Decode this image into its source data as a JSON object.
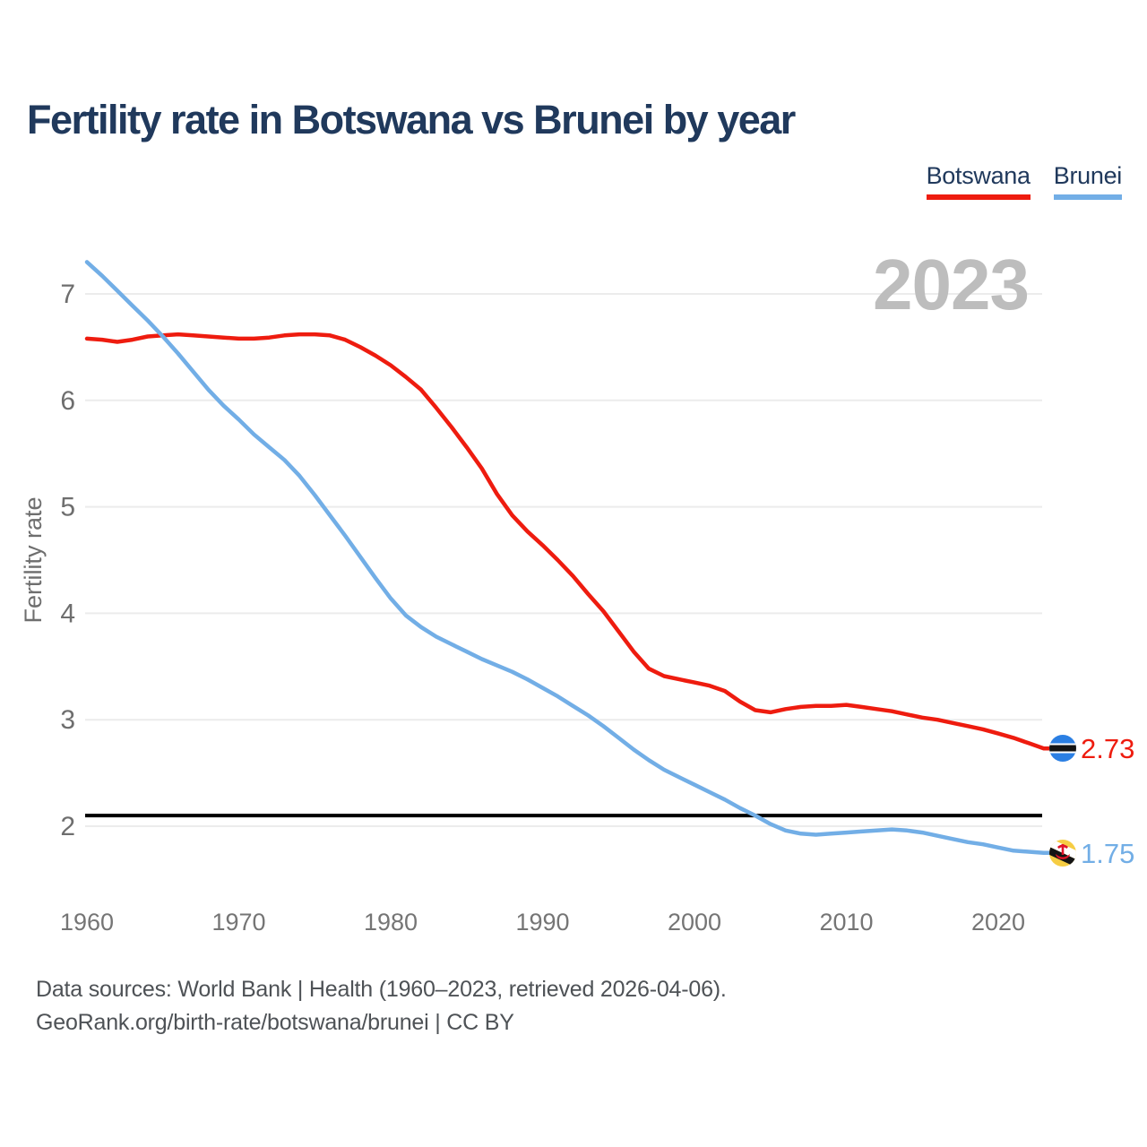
{
  "header": {
    "title": "Fertility rate in Botswana vs Brunei by year",
    "legend": [
      {
        "label": "Botswana",
        "color": "#ee1c0f"
      },
      {
        "label": "Brunei",
        "color": "#72aee6"
      }
    ]
  },
  "watermark": "2023",
  "chart_data": {
    "type": "line",
    "title": "Fertility rate in Botswana vs Brunei by year",
    "xlabel": "",
    "ylabel": "Fertility rate",
    "xlim": [
      1960,
      2023
    ],
    "ylim": [
      1.6,
      7.45
    ],
    "x_ticks": [
      1960,
      1970,
      1980,
      1990,
      2000,
      2010,
      2020
    ],
    "y_ticks": [
      2,
      3,
      4,
      5,
      6,
      7
    ],
    "grid": "horizontal",
    "legend_position": "top-right",
    "reference_line": {
      "value": 2.1,
      "color": "#000000"
    },
    "x": [
      1960,
      1961,
      1962,
      1963,
      1964,
      1965,
      1966,
      1967,
      1968,
      1969,
      1970,
      1971,
      1972,
      1973,
      1974,
      1975,
      1976,
      1977,
      1978,
      1979,
      1980,
      1981,
      1982,
      1983,
      1984,
      1985,
      1986,
      1987,
      1988,
      1989,
      1990,
      1991,
      1992,
      1993,
      1994,
      1995,
      1996,
      1997,
      1998,
      1999,
      2000,
      2001,
      2002,
      2003,
      2004,
      2005,
      2006,
      2007,
      2008,
      2009,
      2010,
      2011,
      2012,
      2013,
      2014,
      2015,
      2016,
      2017,
      2018,
      2019,
      2020,
      2021,
      2022,
      2023
    ],
    "series": [
      {
        "name": "Botswana",
        "color": "#ee1c0f",
        "end_label": "2.73",
        "end_value": 2.73,
        "flag": "botswana",
        "values": [
          6.58,
          6.57,
          6.55,
          6.57,
          6.6,
          6.61,
          6.62,
          6.61,
          6.6,
          6.59,
          6.58,
          6.58,
          6.59,
          6.61,
          6.62,
          6.62,
          6.61,
          6.57,
          6.5,
          6.42,
          6.33,
          6.22,
          6.1,
          5.93,
          5.75,
          5.56,
          5.36,
          5.12,
          4.92,
          4.77,
          4.64,
          4.5,
          4.35,
          4.18,
          4.02,
          3.83,
          3.64,
          3.48,
          3.41,
          3.38,
          3.35,
          3.32,
          3.27,
          3.17,
          3.09,
          3.07,
          3.1,
          3.12,
          3.13,
          3.13,
          3.14,
          3.12,
          3.1,
          3.08,
          3.05,
          3.02,
          3.0,
          2.97,
          2.94,
          2.91,
          2.87,
          2.83,
          2.78,
          2.73
        ]
      },
      {
        "name": "Brunei",
        "color": "#72aee6",
        "end_label": "1.75",
        "end_value": 1.75,
        "flag": "brunei",
        "values": [
          7.3,
          7.17,
          7.03,
          6.89,
          6.75,
          6.6,
          6.44,
          6.27,
          6.1,
          5.95,
          5.82,
          5.68,
          5.56,
          5.44,
          5.29,
          5.11,
          4.92,
          4.73,
          4.53,
          4.33,
          4.14,
          3.98,
          3.87,
          3.78,
          3.71,
          3.64,
          3.57,
          3.51,
          3.45,
          3.38,
          3.3,
          3.22,
          3.13,
          3.04,
          2.94,
          2.83,
          2.72,
          2.62,
          2.53,
          2.46,
          2.39,
          2.32,
          2.25,
          2.17,
          2.1,
          2.02,
          1.96,
          1.93,
          1.92,
          1.93,
          1.94,
          1.95,
          1.96,
          1.97,
          1.96,
          1.94,
          1.91,
          1.88,
          1.85,
          1.83,
          1.8,
          1.77,
          1.76,
          1.75
        ]
      }
    ]
  },
  "footer": {
    "line1": "Data sources: World Bank | Health (1960–2023, retrieved 2026-04-06).",
    "line2": "GeoRank.org/birth-rate/botswana/brunei | CC BY"
  }
}
